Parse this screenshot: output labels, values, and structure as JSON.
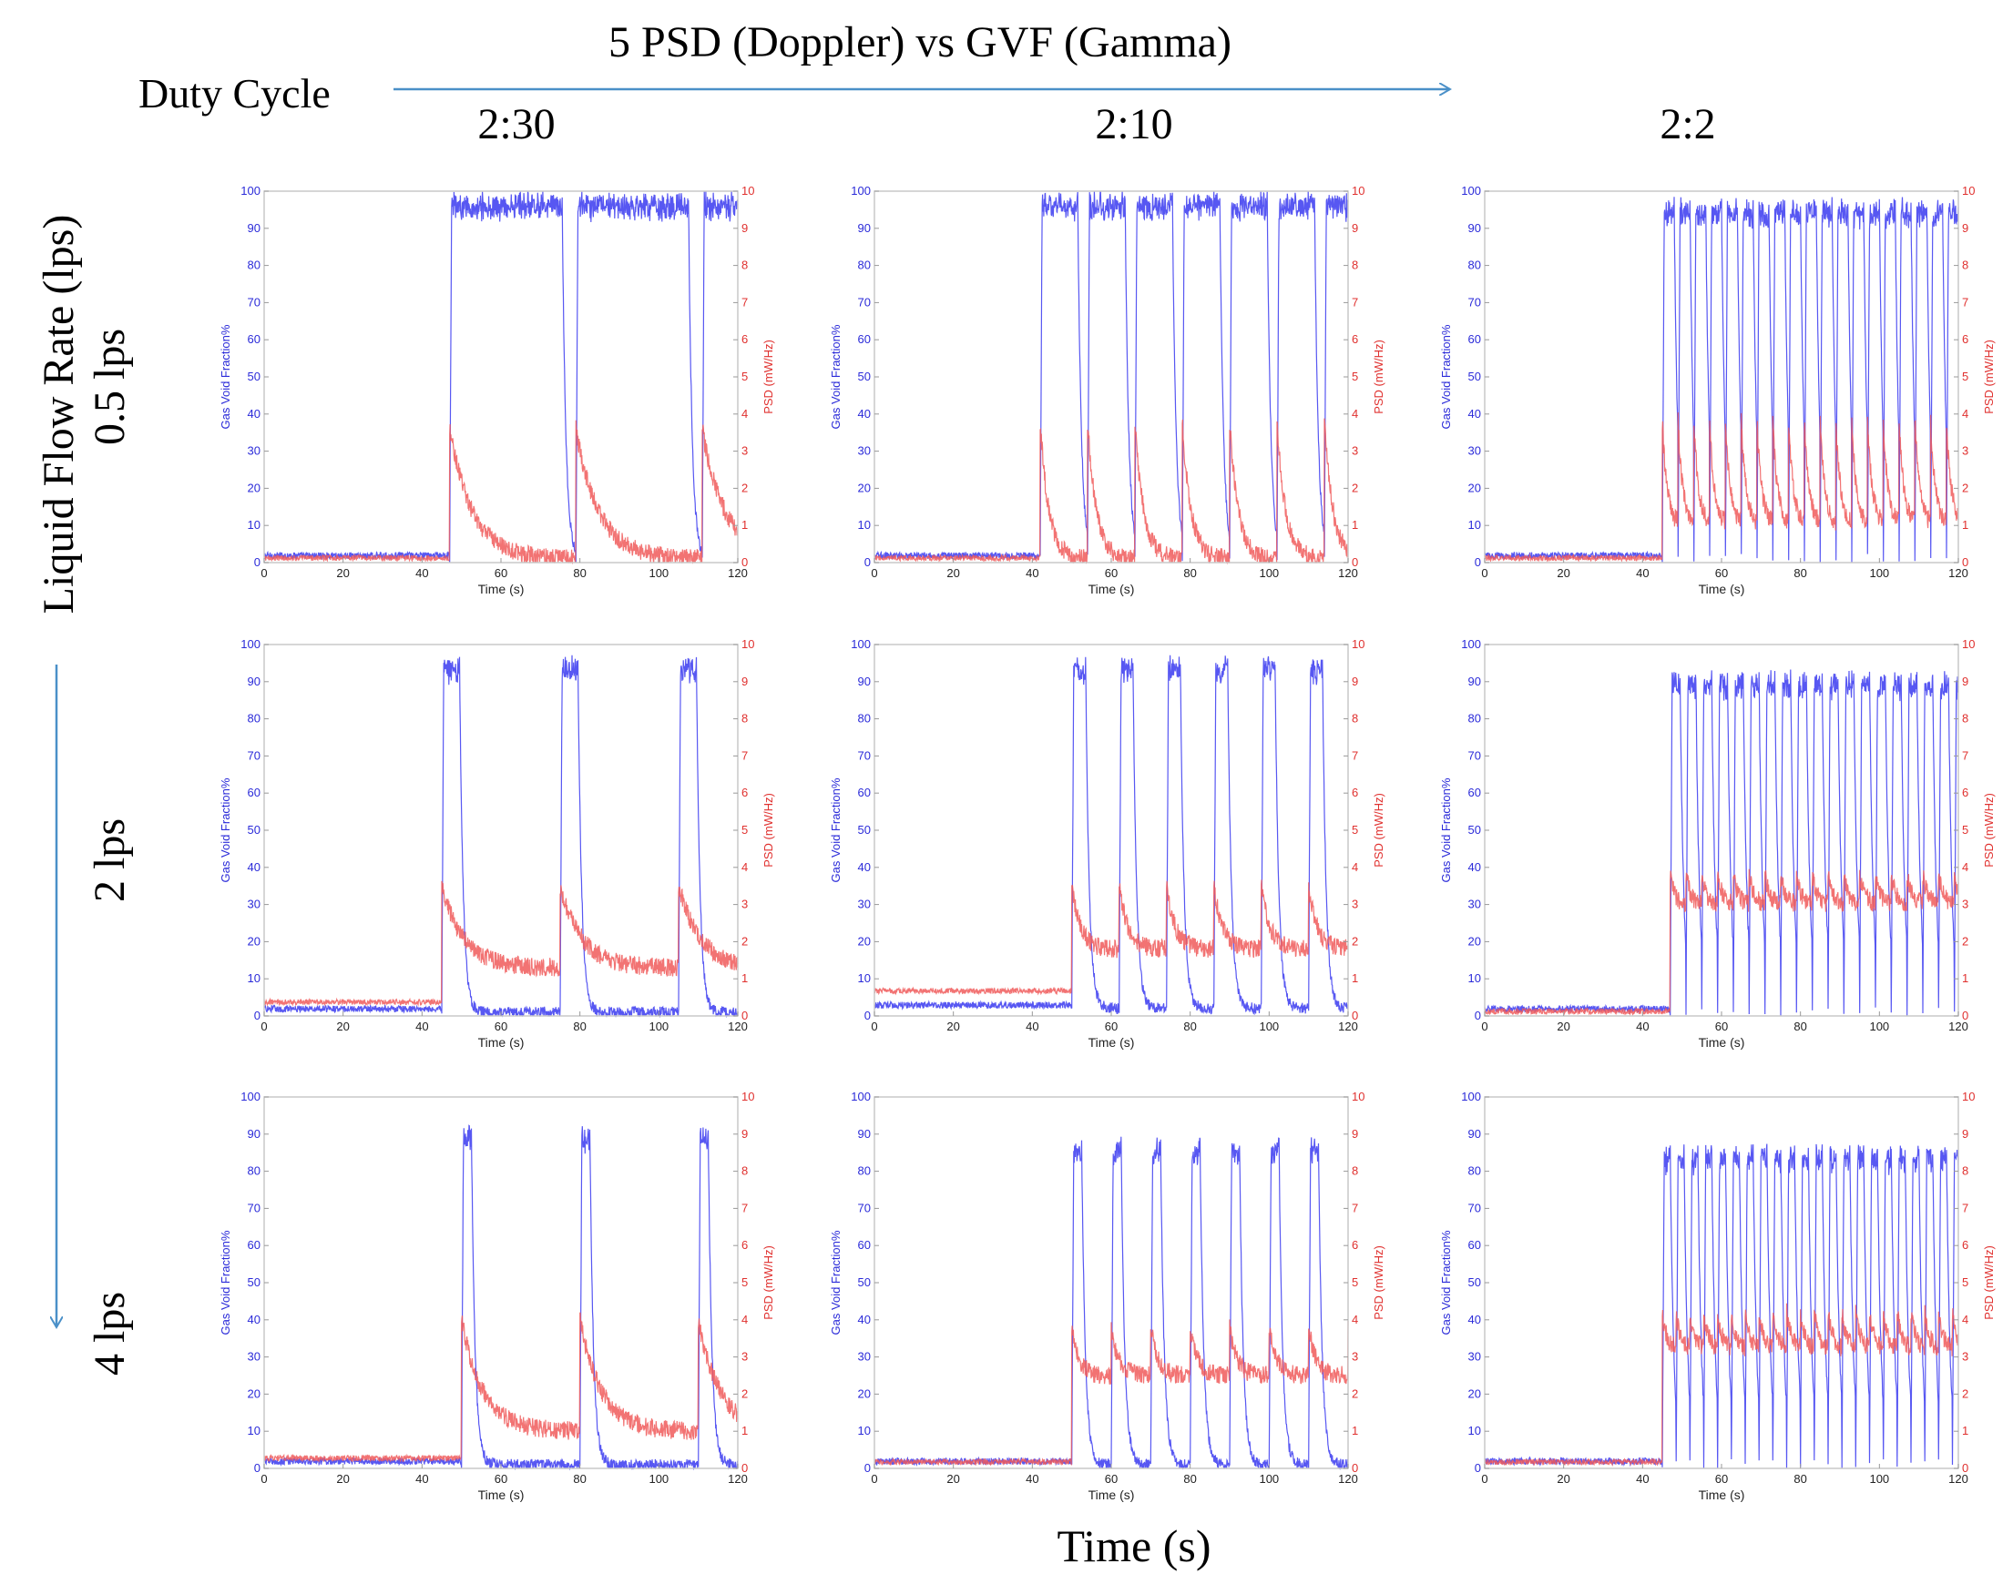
{
  "figure": {
    "title": "5 PSD (Doppler) vs GVF (Gamma)",
    "duty_cycle_label": "Duty Cycle",
    "columns": [
      "2:30",
      "2:10",
      "2:2"
    ],
    "flow_axis_label": "Liquid Flow Rate (lps)",
    "rows": [
      "0.5 lps",
      "2 lps",
      "4 lps"
    ],
    "bottom_label": "Time (s)"
  },
  "colors": {
    "gvf": "#3a3af0",
    "psd": "#f05a5a",
    "arrow": "#4a90c8"
  },
  "chart_data": {
    "type": "line",
    "panel_grid": "3x3",
    "xlabel": "Time (s)",
    "ylabel_left": "Gas Void Fraction%",
    "ylabel_right": "PSD (mW/Hz)",
    "xlim": [
      0,
      120
    ],
    "ylim_left": [
      0,
      100
    ],
    "ylim_right": [
      0,
      10
    ],
    "x_ticks": [
      0,
      20,
      40,
      60,
      80,
      100,
      120
    ],
    "y_ticks_left": [
      0,
      10,
      20,
      30,
      40,
      50,
      60,
      70,
      80,
      90,
      100
    ],
    "y_ticks_right": [
      0,
      1,
      2,
      3,
      4,
      5,
      6,
      7,
      8,
      9,
      10
    ],
    "panels": [
      {
        "duty": "2:30",
        "flow": "0.5 lps",
        "gas_start": 47,
        "on_s": 2,
        "period_s": 32,
        "pulse_hold_s": 28,
        "gvf_peak": 99,
        "gvf_base": 1,
        "psd_peak": 3.6,
        "psd_tail": 0.1,
        "psd_base": 0.05
      },
      {
        "duty": "2:10",
        "flow": "0.5 lps",
        "gas_start": 42,
        "on_s": 2,
        "period_s": 12,
        "pulse_hold_s": 9,
        "gvf_peak": 99,
        "gvf_base": 1,
        "psd_peak": 3.8,
        "psd_tail": 0.1,
        "psd_base": 0.05
      },
      {
        "duty": "2:2",
        "flow": "0.5 lps",
        "gas_start": 45,
        "on_s": 2,
        "period_s": 4,
        "pulse_hold_s": 2.5,
        "gvf_peak": 97,
        "gvf_base": 1,
        "psd_peak": 3.8,
        "psd_tail": 1.0,
        "psd_base": 0.05
      },
      {
        "duty": "2:30",
        "flow": "2 lps",
        "gas_start": 45,
        "on_s": 2,
        "period_s": 30,
        "pulse_hold_s": 4,
        "gvf_peak": 96,
        "gvf_base": 1,
        "psd_peak": 3.5,
        "psd_tail": 1.3,
        "psd_base": 0.3
      },
      {
        "duty": "2:10",
        "flow": "2 lps",
        "gas_start": 50,
        "on_s": 2,
        "period_s": 12,
        "pulse_hold_s": 3,
        "gvf_peak": 96,
        "gvf_base": 2,
        "psd_peak": 3.5,
        "psd_tail": 1.8,
        "psd_base": 0.6
      },
      {
        "duty": "2:2",
        "flow": "2 lps",
        "gas_start": 47,
        "on_s": 2,
        "period_s": 4,
        "pulse_hold_s": 2,
        "gvf_peak": 92,
        "gvf_base": 1,
        "psd_peak": 3.8,
        "psd_tail": 3.0,
        "psd_base": 0.05
      },
      {
        "duty": "2:30",
        "flow": "4 lps",
        "gas_start": 50,
        "on_s": 2,
        "period_s": 30,
        "pulse_hold_s": 2,
        "gvf_peak": 92,
        "gvf_base": 1,
        "psd_peak": 4.0,
        "psd_tail": 1.0,
        "psd_base": 0.2
      },
      {
        "duty": "2:10",
        "flow": "4 lps",
        "gas_start": 50,
        "on_s": 2,
        "period_s": 10,
        "pulse_hold_s": 2,
        "gvf_peak": 88,
        "gvf_base": 1,
        "psd_peak": 3.8,
        "psd_tail": 2.5,
        "psd_base": 0.1
      },
      {
        "duty": "2:2",
        "flow": "4 lps",
        "gas_start": 45,
        "on_s": 2,
        "period_s": 3.5,
        "pulse_hold_s": 1.5,
        "gvf_peak": 86,
        "gvf_base": 1,
        "psd_peak": 4.2,
        "psd_tail": 3.2,
        "psd_base": 0.1
      }
    ]
  }
}
